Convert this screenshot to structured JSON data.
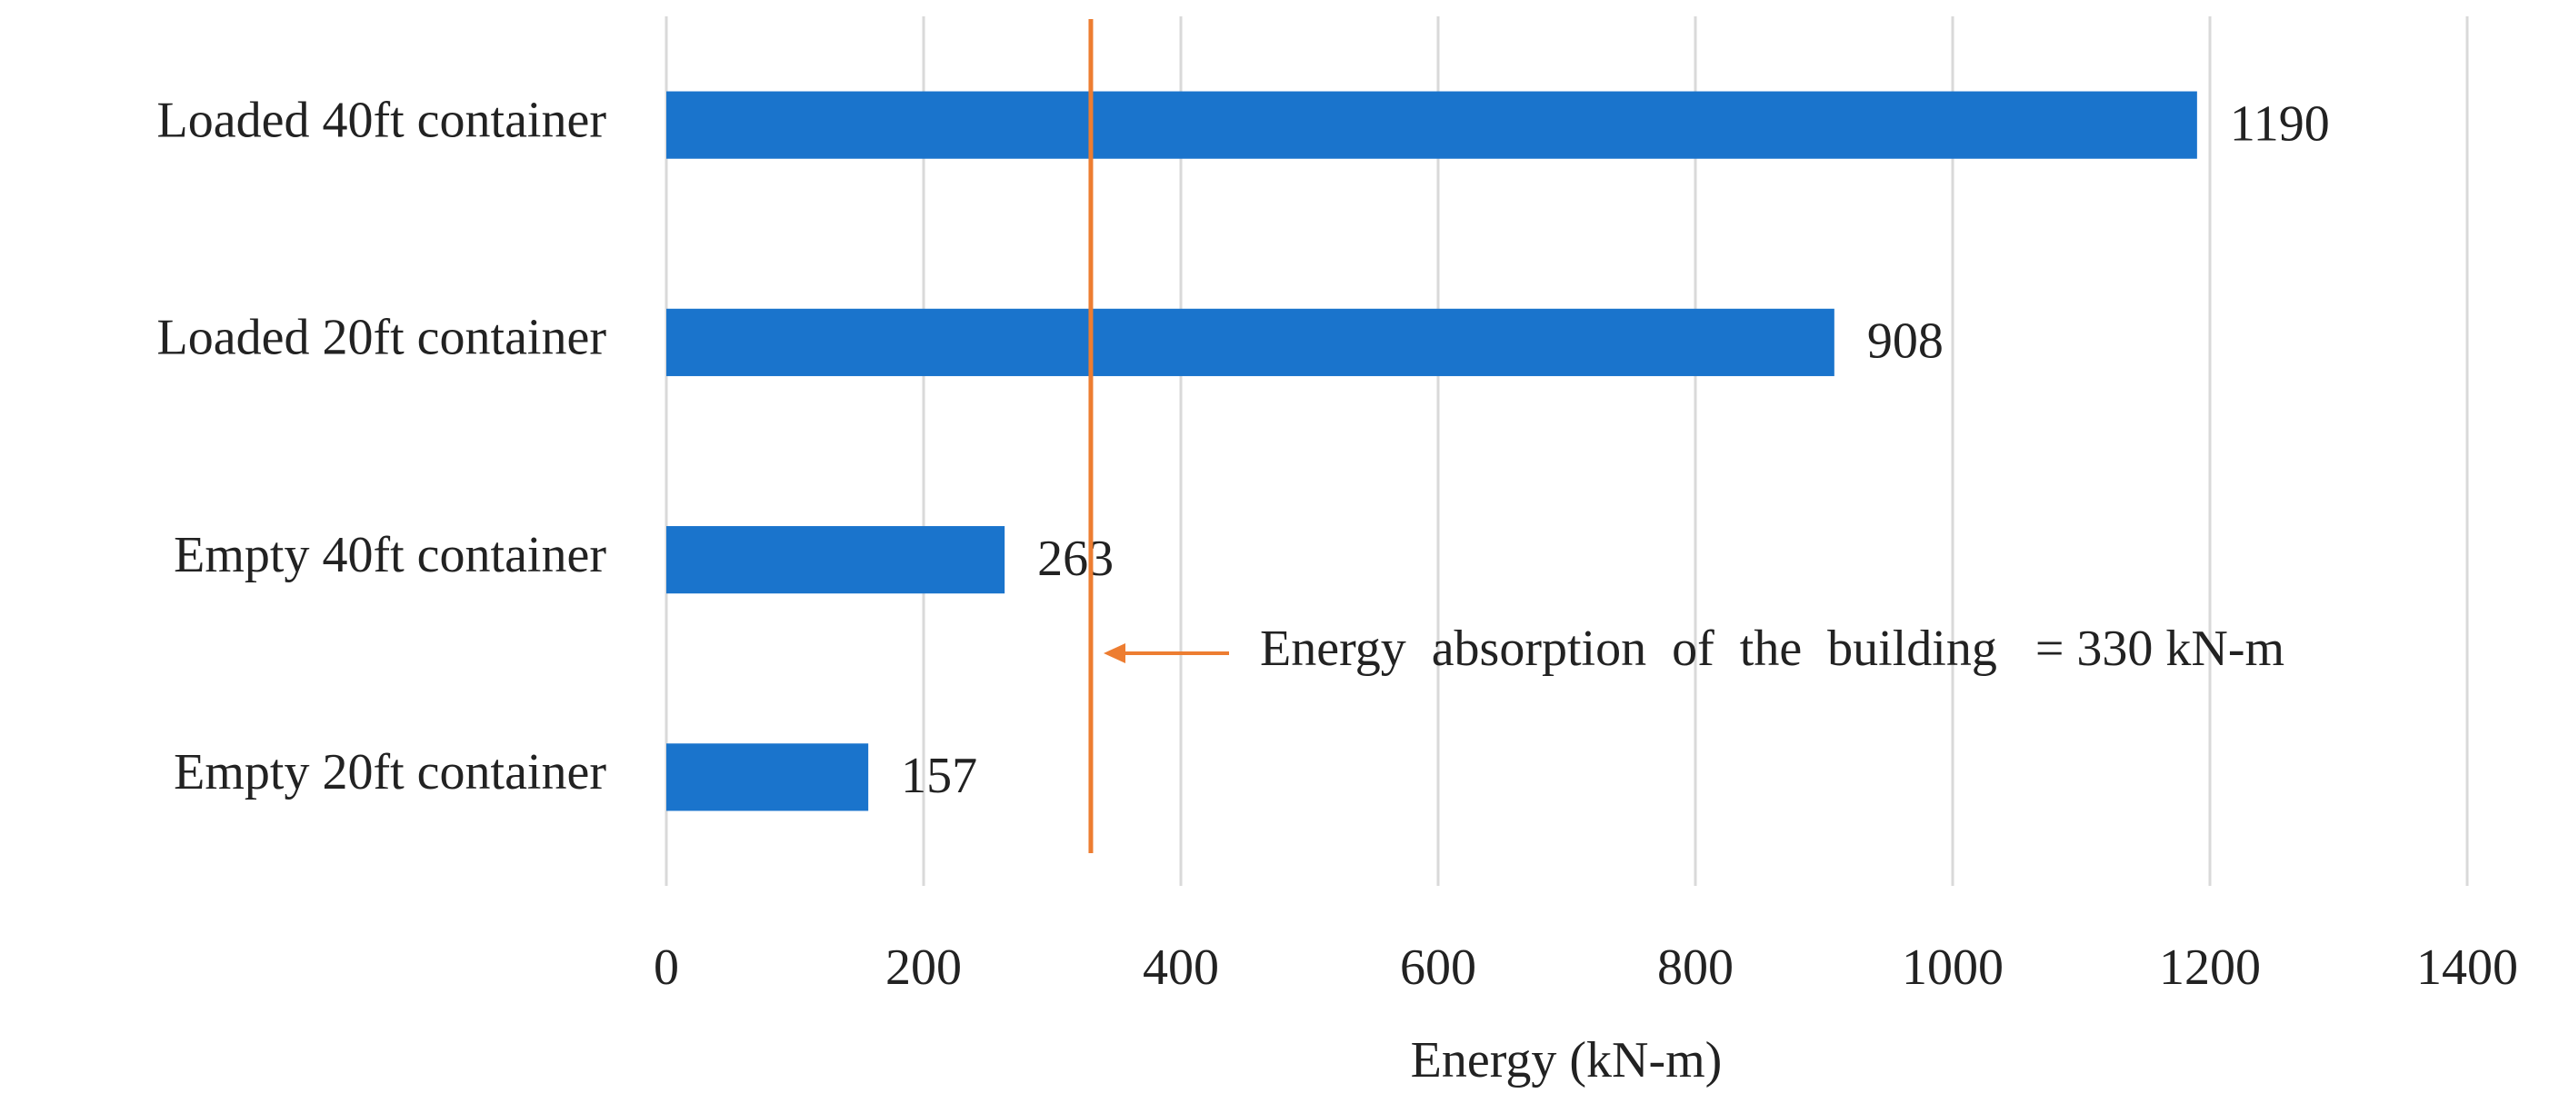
{
  "chart_data": {
    "type": "hbar",
    "categories": [
      "Loaded 40ft container",
      "Loaded 20ft container",
      "Empty 40ft container",
      "Empty 20ft container"
    ],
    "values": [
      1190,
      908,
      263,
      157
    ],
    "color": "#1a74cc",
    "xlim": [
      0,
      1400
    ],
    "xticks": [
      0,
      200,
      400,
      600,
      800,
      1000,
      1200,
      1400
    ],
    "x_label": "Energy  (kN-m)",
    "grid": true,
    "reference_line": {
      "value": 330,
      "label": "Energy  absorption  of  the  building   = 330 kN-m",
      "color": "#ed7d31"
    }
  }
}
